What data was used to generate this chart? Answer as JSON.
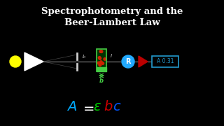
{
  "title_line1": "Spectrophotometry and the",
  "title_line2": "Beer-Lambert Law",
  "bg_color": "#000000",
  "title_color": "#ffffff",
  "eq_A_color": "#00aaff",
  "eq_eq_color": "#ffffff",
  "eq_eps_color": "#00cc00",
  "eq_b_color": "#cc0000",
  "eq_c_color": "#0055ff",
  "circle_color": "#ffff00",
  "triangle_color": "#ffffff",
  "cuvette_border": "#44cc44",
  "cuvette_fill": "#003300",
  "cuvette_green_fill": "#44cc44",
  "dot_color": "#cc2200",
  "detector_color": "#22aaff",
  "arrow_color": "#bb0000",
  "readout_border": "#2299cc",
  "readout_text": "A 0.31",
  "readout_text_color": "#2299cc",
  "label_I0": "I₀",
  "label_I": "I",
  "label_b": "b",
  "label_color": "#dddddd",
  "green_label_color": "#44cc44",
  "beam_color": "#888888",
  "slit_color": "#cccccc"
}
